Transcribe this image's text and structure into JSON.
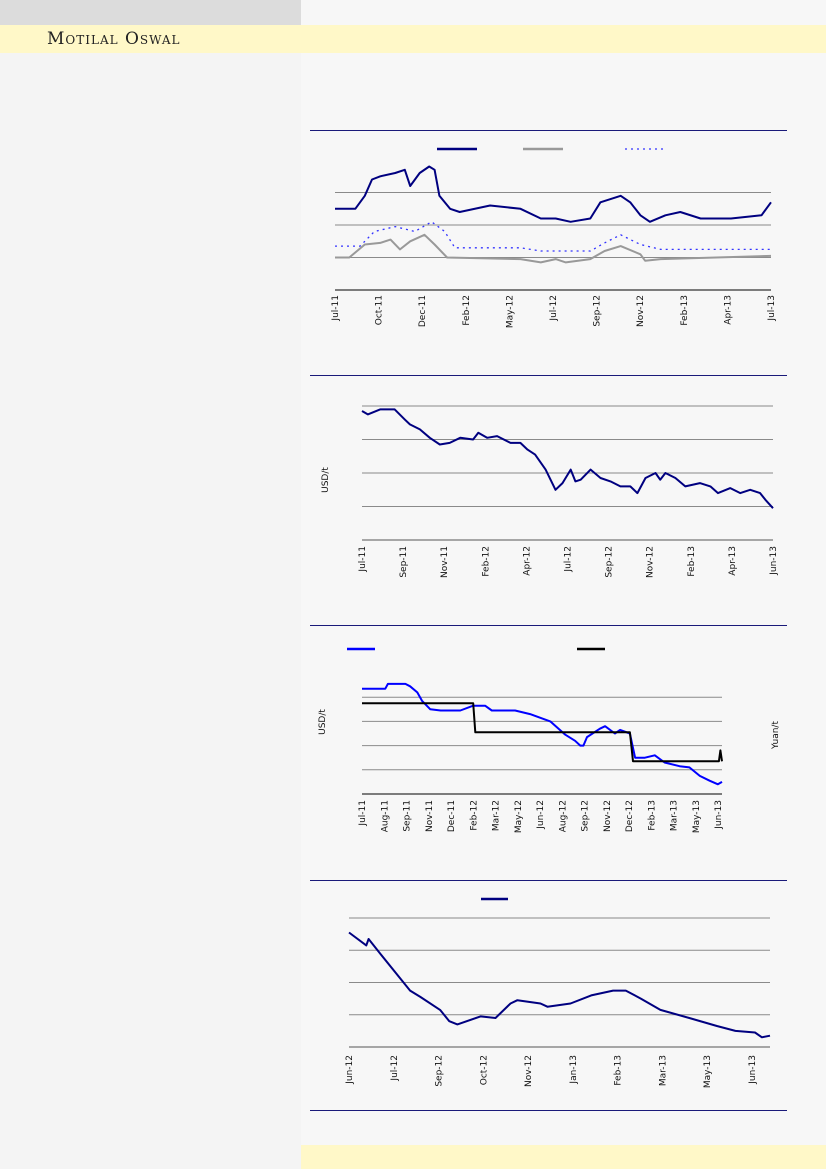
{
  "header": {
    "logo_text": "Motilal Oswal",
    "brand_band_color": "#fff8c8"
  },
  "chart_data": [
    {
      "type": "line",
      "x_ticks": [
        "Jul-11",
        "Oct-11",
        "Dec-11",
        "Feb-12",
        "May-12",
        "Jul-12",
        "Sep-12",
        "Nov-12",
        "Feb-13",
        "Apr-13",
        "Jul-13"
      ],
      "ylim": [
        0,
        4
      ],
      "grid": true,
      "legend": "top",
      "series": [
        {
          "color": "#000080",
          "style": "solid",
          "points": [
            [
              "2011-07-01",
              2.5
            ],
            [
              "2011-08-04",
              2.5
            ],
            [
              "2011-08-20",
              2.9
            ],
            [
              "2011-09-01",
              3.4
            ],
            [
              "2011-09-15",
              3.5
            ],
            [
              "2011-10-10",
              3.6
            ],
            [
              "2011-10-26",
              3.7
            ],
            [
              "2011-11-04",
              3.2
            ],
            [
              "2011-11-20",
              3.6
            ],
            [
              "2011-12-06",
              3.8
            ],
            [
              "2011-12-15",
              3.7
            ],
            [
              "2011-12-23",
              2.9
            ],
            [
              "2012-01-10",
              2.5
            ],
            [
              "2012-01-26",
              2.4
            ],
            [
              "2012-03-17",
              2.6
            ],
            [
              "2012-05-07",
              2.5
            ],
            [
              "2012-06-10",
              2.2
            ],
            [
              "2012-07-05",
              2.2
            ],
            [
              "2012-07-30",
              2.1
            ],
            [
              "2012-09-01",
              2.2
            ],
            [
              "2012-09-18",
              2.7
            ],
            [
              "2012-10-22",
              2.9
            ],
            [
              "2012-11-07",
              2.7
            ],
            [
              "2012-11-24",
              2.3
            ],
            [
              "2012-12-10",
              2.1
            ],
            [
              "2013-01-05",
              2.3
            ],
            [
              "2013-01-30",
              2.4
            ],
            [
              "2013-03-05",
              2.2
            ],
            [
              "2013-04-25",
              2.2
            ],
            [
              "2013-06-15",
              2.3
            ],
            [
              "2013-07-01",
              2.7
            ]
          ]
        },
        {
          "color": "#999999",
          "style": "solid",
          "points": [
            [
              "2011-07-01",
              1.0
            ],
            [
              "2011-07-25",
              1.0
            ],
            [
              "2011-08-20",
              1.4
            ],
            [
              "2011-09-15",
              1.45
            ],
            [
              "2011-10-02",
              1.55
            ],
            [
              "2011-10-18",
              1.25
            ],
            [
              "2011-11-04",
              1.5
            ],
            [
              "2011-11-28",
              1.7
            ],
            [
              "2011-12-15",
              1.4
            ],
            [
              "2012-01-05",
              1.0
            ],
            [
              "2012-05-07",
              0.95
            ],
            [
              "2012-06-10",
              0.85
            ],
            [
              "2012-07-05",
              0.95
            ],
            [
              "2012-07-22",
              0.85
            ],
            [
              "2012-09-01",
              0.95
            ],
            [
              "2012-09-25",
              1.2
            ],
            [
              "2012-10-22",
              1.35
            ],
            [
              "2012-11-24",
              1.1
            ],
            [
              "2012-12-02",
              0.9
            ],
            [
              "2012-12-28",
              0.95
            ],
            [
              "2013-07-01",
              1.05
            ]
          ]
        },
        {
          "color": "#3333ff",
          "style": "dotted",
          "points": [
            [
              "2011-07-01",
              1.35
            ],
            [
              "2011-08-12",
              1.35
            ],
            [
              "2011-09-05",
              1.8
            ],
            [
              "2011-10-10",
              1.95
            ],
            [
              "2011-11-12",
              1.8
            ],
            [
              "2011-12-10",
              2.1
            ],
            [
              "2012-01-01",
              1.8
            ],
            [
              "2012-01-18",
              1.3
            ],
            [
              "2012-05-07",
              1.3
            ],
            [
              "2012-06-10",
              1.2
            ],
            [
              "2012-09-01",
              1.2
            ],
            [
              "2012-09-25",
              1.45
            ],
            [
              "2012-10-22",
              1.7
            ],
            [
              "2012-11-24",
              1.4
            ],
            [
              "2012-12-28",
              1.25
            ],
            [
              "2013-07-01",
              1.25
            ]
          ]
        }
      ]
    },
    {
      "type": "line",
      "ylabel": "USD/t",
      "x_ticks": [
        "Jul-11",
        "Sep-11",
        "Nov-11",
        "Feb-12",
        "Apr-12",
        "Jul-12",
        "Sep-12",
        "Nov-12",
        "Feb-13",
        "Apr-13",
        "Jun-13"
      ],
      "ylim": [
        0,
        4
      ],
      "grid": true,
      "series": [
        {
          "color": "#000080",
          "style": "solid",
          "points": [
            [
              "2011-07-01",
              3.85
            ],
            [
              "2011-07-11",
              3.75
            ],
            [
              "2011-08-01",
              3.9
            ],
            [
              "2011-08-26",
              3.9
            ],
            [
              "2011-09-12",
              3.6
            ],
            [
              "2011-09-21",
              3.45
            ],
            [
              "2011-10-08",
              3.3
            ],
            [
              "2011-10-25",
              3.05
            ],
            [
              "2011-11-11",
              2.85
            ],
            [
              "2011-11-28",
              2.9
            ],
            [
              "2011-12-16",
              3.05
            ],
            [
              "2012-01-07",
              3.0
            ],
            [
              "2012-01-16",
              3.2
            ],
            [
              "2012-01-31",
              3.05
            ],
            [
              "2012-02-17",
              3.1
            ],
            [
              "2012-03-11",
              2.9
            ],
            [
              "2012-03-28",
              2.9
            ],
            [
              "2012-04-09",
              2.7
            ],
            [
              "2012-04-22",
              2.55
            ],
            [
              "2012-05-10",
              2.1
            ],
            [
              "2012-05-27",
              1.5
            ],
            [
              "2012-06-08",
              1.7
            ],
            [
              "2012-06-22",
              2.1
            ],
            [
              "2012-06-30",
              1.75
            ],
            [
              "2012-07-09",
              1.8
            ],
            [
              "2012-07-26",
              2.1
            ],
            [
              "2012-08-12",
              1.85
            ],
            [
              "2012-08-29",
              1.75
            ],
            [
              "2012-09-15",
              1.6
            ],
            [
              "2012-10-02",
              1.6
            ],
            [
              "2012-10-14",
              1.4
            ],
            [
              "2012-10-28",
              1.85
            ],
            [
              "2012-11-14",
              2.0
            ],
            [
              "2012-11-22",
              1.8
            ],
            [
              "2012-12-01",
              2.0
            ],
            [
              "2012-12-18",
              1.85
            ],
            [
              "2013-01-04",
              1.6
            ],
            [
              "2013-01-29",
              1.7
            ],
            [
              "2013-02-16",
              1.6
            ],
            [
              "2013-03-01",
              1.4
            ],
            [
              "2013-03-22",
              1.55
            ],
            [
              "2013-04-08",
              1.4
            ],
            [
              "2013-04-25",
              1.5
            ],
            [
              "2013-05-12",
              1.4
            ],
            [
              "2013-05-21",
              1.2
            ],
            [
              "2013-06-03",
              0.95
            ]
          ]
        }
      ]
    },
    {
      "type": "line",
      "ylabel": "USD/t",
      "ylabel_right": "Yuan/t",
      "x_ticks": [
        "Jul-11",
        "Aug-11",
        "Sep-11",
        "Nov-11",
        "Dec-11",
        "Feb-12",
        "Mar-12",
        "May-12",
        "Jun-12",
        "Aug-12",
        "Sep-12",
        "Nov-12",
        "Dec-12",
        "Feb-13",
        "Mar-13",
        "May-13",
        "Jun-13"
      ],
      "ylim": [
        0,
        5
      ],
      "grid": true,
      "legend": "top",
      "series": [
        {
          "color": "#0000ff",
          "style": "solid",
          "axis": "left",
          "points": [
            [
              "2011-07-01",
              4.35
            ],
            [
              "2011-08-15",
              4.35
            ],
            [
              "2011-08-20",
              4.55
            ],
            [
              "2011-09-23",
              4.55
            ],
            [
              "2011-10-02",
              4.45
            ],
            [
              "2011-10-16",
              4.2
            ],
            [
              "2011-10-25",
              3.85
            ],
            [
              "2011-11-10",
              3.5
            ],
            [
              "2011-11-30",
              3.45
            ],
            [
              "2012-01-07",
              3.45
            ],
            [
              "2012-02-01",
              3.65
            ],
            [
              "2012-02-24",
              3.65
            ],
            [
              "2012-03-08",
              3.45
            ],
            [
              "2012-04-22",
              3.45
            ],
            [
              "2012-05-21",
              3.3
            ],
            [
              "2012-06-29",
              3.0
            ],
            [
              "2012-07-28",
              2.45
            ],
            [
              "2012-08-16",
              2.2
            ],
            [
              "2012-08-26",
              2.0
            ],
            [
              "2012-09-01",
              2.0
            ],
            [
              "2012-09-08",
              2.35
            ],
            [
              "2012-10-03",
              2.7
            ],
            [
              "2012-10-13",
              2.8
            ],
            [
              "2012-11-01",
              2.5
            ],
            [
              "2012-11-11",
              2.65
            ],
            [
              "2012-11-30",
              2.5
            ],
            [
              "2012-12-10",
              1.5
            ],
            [
              "2012-12-29",
              1.5
            ],
            [
              "2013-01-17",
              1.6
            ],
            [
              "2013-02-05",
              1.3
            ],
            [
              "2013-03-06",
              1.15
            ],
            [
              "2013-03-25",
              1.1
            ],
            [
              "2013-04-14",
              0.75
            ],
            [
              "2013-05-03",
              0.55
            ],
            [
              "2013-05-19",
              0.4
            ],
            [
              "2013-05-27",
              0.5
            ]
          ]
        },
        {
          "color": "#000000",
          "style": "solid",
          "axis": "right",
          "points": [
            [
              "2011-07-01",
              3.75
            ],
            [
              "2012-02-01",
              3.75
            ],
            [
              "2012-02-05",
              2.55
            ],
            [
              "2012-11-30",
              2.55
            ],
            [
              "2012-12-06",
              1.35
            ],
            [
              "2013-05-21",
              1.35
            ],
            [
              "2013-05-24",
              1.8
            ],
            [
              "2013-05-27",
              1.35
            ]
          ]
        }
      ]
    },
    {
      "type": "line",
      "x_ticks": [
        "Jun-12",
        "Jul-12",
        "Sep-12",
        "Oct-12",
        "Nov-12",
        "Jan-13",
        "Feb-13",
        "Mar-13",
        "May-13",
        "Jun-13"
      ],
      "ylim": [
        0,
        4
      ],
      "grid": true,
      "legend": "top",
      "series": [
        {
          "color": "#000080",
          "style": "solid",
          "points": [
            [
              "2012-06-01",
              3.55
            ],
            [
              "2012-06-16",
              3.15
            ],
            [
              "2012-06-18",
              3.35
            ],
            [
              "2012-06-28",
              2.9
            ],
            [
              "2012-07-24",
              1.75
            ],
            [
              "2012-08-02",
              1.55
            ],
            [
              "2012-08-19",
              1.15
            ],
            [
              "2012-08-27",
              0.8
            ],
            [
              "2012-09-03",
              0.7
            ],
            [
              "2012-09-23",
              0.95
            ],
            [
              "2012-10-06",
              0.9
            ],
            [
              "2012-10-19",
              1.35
            ],
            [
              "2012-10-25",
              1.45
            ],
            [
              "2012-11-14",
              1.35
            ],
            [
              "2012-11-20",
              1.25
            ],
            [
              "2012-12-10",
              1.35
            ],
            [
              "2012-12-28",
              1.6
            ],
            [
              "2013-01-16",
              1.75
            ],
            [
              "2013-01-27",
              1.75
            ],
            [
              "2013-02-09",
              1.5
            ],
            [
              "2013-02-26",
              1.15
            ],
            [
              "2013-03-23",
              0.9
            ],
            [
              "2013-04-16",
              0.65
            ],
            [
              "2013-05-02",
              0.5
            ],
            [
              "2013-05-19",
              0.45
            ],
            [
              "2013-05-25",
              0.3
            ],
            [
              "2013-06-01",
              0.35
            ]
          ]
        }
      ]
    }
  ]
}
